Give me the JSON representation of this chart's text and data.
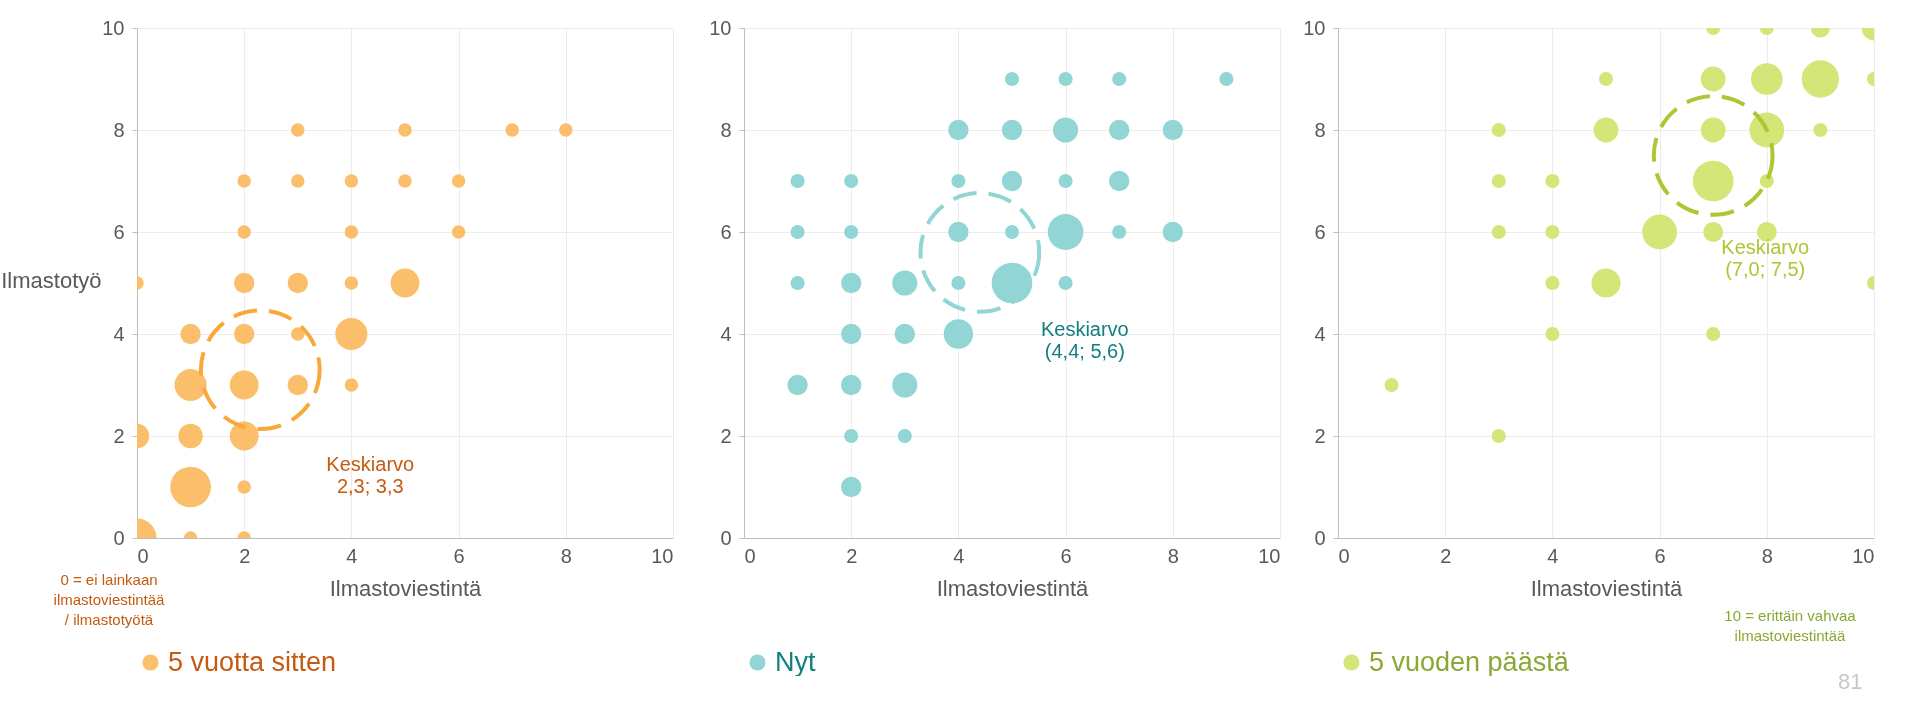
{
  "chart_data": [
    {
      "type": "bubble",
      "xlabel": "Ilmastoviestintä",
      "ylabel": "Ilmastotyö",
      "xlim": [
        0,
        10
      ],
      "ylim": [
        0,
        10
      ],
      "xticks": [
        0,
        2,
        4,
        6,
        8,
        10
      ],
      "yticks": [
        0,
        2,
        4,
        6,
        8,
        10
      ],
      "grid": true,
      "legend": "bottom",
      "marker": "circle",
      "series": [
        {
          "name": "5 vuotta sitten",
          "color": "#fbbf6b",
          "x": [
            3,
            5,
            7,
            8,
            2,
            3,
            4,
            5,
            6,
            2,
            4,
            6,
            0,
            2,
            3,
            4,
            5,
            1,
            2,
            3,
            4,
            1,
            2,
            3,
            4,
            0,
            1,
            2,
            1,
            2,
            0,
            1,
            2
          ],
          "values": [
            8,
            8,
            8,
            8,
            7,
            7,
            7,
            7,
            7,
            6,
            6,
            6,
            5,
            5,
            5,
            5,
            5,
            4,
            4,
            4,
            4,
            3,
            3,
            3,
            3,
            2,
            2,
            2,
            1,
            1,
            0,
            0,
            0
          ],
          "sizes": [
            0.11,
            0.11,
            0.11,
            0.11,
            0.11,
            0.11,
            0.11,
            0.11,
            0.11,
            0.11,
            0.11,
            0.11,
            0.11,
            0.25,
            0.25,
            0.11,
            0.5,
            0.25,
            0.25,
            0.11,
            0.62,
            0.62,
            0.5,
            0.25,
            0.11,
            0.36,
            0.36,
            0.5,
            1,
            0.11,
            0.92,
            0.11,
            0.11
          ]
        },
        {
          "name": "Keskiarvo\n2,3; 3,3",
          "type": "scatter",
          "color": "#f9a83a",
          "line_style": "dashed",
          "x": [
            2.3
          ],
          "values": [
            3.3
          ]
        }
      ],
      "annotations": [
        "0 = ei lainkaan\nilmastoviestintää\n/ ilmastotyötä"
      ]
    },
    {
      "type": "bubble",
      "xlabel": "Ilmastoviestintä",
      "xlim": [
        0,
        10
      ],
      "ylim": [
        0,
        10
      ],
      "xticks": [
        0,
        2,
        4,
        6,
        8,
        10
      ],
      "yticks": [
        0,
        2,
        4,
        6,
        8,
        10
      ],
      "grid": true,
      "legend": "bottom",
      "marker": "circle",
      "series": [
        {
          "name": "Nyt",
          "color": "#92d5d5",
          "x": [
            5,
            6,
            7,
            9,
            4,
            5,
            6,
            7,
            8,
            1,
            2,
            4,
            5,
            6,
            7,
            1,
            2,
            4,
            5,
            6,
            7,
            8,
            1,
            2,
            3,
            4,
            5,
            6,
            2,
            3,
            4,
            1,
            2,
            3,
            2,
            3,
            2
          ],
          "values": [
            9,
            9,
            9,
            9,
            8,
            8,
            8,
            8,
            8,
            7,
            7,
            7,
            7,
            7,
            7,
            6,
            6,
            6,
            6,
            6,
            6,
            6,
            5,
            5,
            5,
            5,
            5,
            5,
            4,
            4,
            4,
            3,
            3,
            3,
            2,
            2,
            1
          ],
          "sizes": [
            0.12,
            0.12,
            0.12,
            0.12,
            0.25,
            0.25,
            0.38,
            0.25,
            0.25,
            0.12,
            0.12,
            0.12,
            0.25,
            0.12,
            0.25,
            0.12,
            0.12,
            0.25,
            0.12,
            0.77,
            0.12,
            0.25,
            0.12,
            0.25,
            0.38,
            0.12,
            1,
            0.12,
            0.25,
            0.25,
            0.52,
            0.25,
            0.25,
            0.38,
            0.12,
            0.12,
            0.25
          ]
        },
        {
          "name": "Keskiarvo\n(4,4; 5,6)",
          "type": "scatter",
          "color": "#92d5d5",
          "line_style": "dashed",
          "x": [
            4.4
          ],
          "values": [
            5.6
          ]
        }
      ]
    },
    {
      "type": "bubble",
      "xlabel": "Ilmastoviestintä",
      "xlim": [
        0,
        10
      ],
      "ylim": [
        0,
        10
      ],
      "xticks": [
        0,
        2,
        4,
        6,
        8,
        10
      ],
      "yticks": [
        0,
        2,
        4,
        6,
        8,
        10
      ],
      "grid": true,
      "legend": "bottom",
      "marker": "circle",
      "series": [
        {
          "name": "5 vuoden päästä",
          "color": "#d4e677",
          "x": [
            7,
            8,
            9,
            10,
            5,
            7,
            8,
            9,
            10,
            3,
            5,
            7,
            8,
            9,
            3,
            4,
            7,
            8,
            3,
            4,
            6,
            7,
            8,
            4,
            5,
            10,
            4,
            7,
            1,
            3
          ],
          "values": [
            10,
            10,
            10,
            10,
            9,
            9,
            9,
            9,
            9,
            8,
            8,
            8,
            8,
            8,
            7,
            7,
            7,
            7,
            6,
            6,
            6,
            6,
            6,
            5,
            5,
            5,
            4,
            4,
            3,
            2
          ],
          "sizes": [
            0.12,
            0.12,
            0.22,
            0.37,
            0.12,
            0.37,
            0.6,
            0.84,
            0.12,
            0.12,
            0.37,
            0.37,
            0.73,
            0.12,
            0.12,
            0.12,
            1,
            0.12,
            0.12,
            0.12,
            0.73,
            0.24,
            0.24,
            0.12,
            0.51,
            0.12,
            0.12,
            0.12,
            0.12,
            0.12
          ]
        },
        {
          "name": "Keskiarvo\n(7,0; 7,5)",
          "type": "scatter",
          "color": "#a9c834",
          "line_style": "dashed",
          "x": [
            7.0
          ],
          "values": [
            7.5
          ]
        }
      ],
      "annotations": [
        "10 = erittäin vahvaa\nilmastoviestintää",
        "81"
      ]
    }
  ]
}
